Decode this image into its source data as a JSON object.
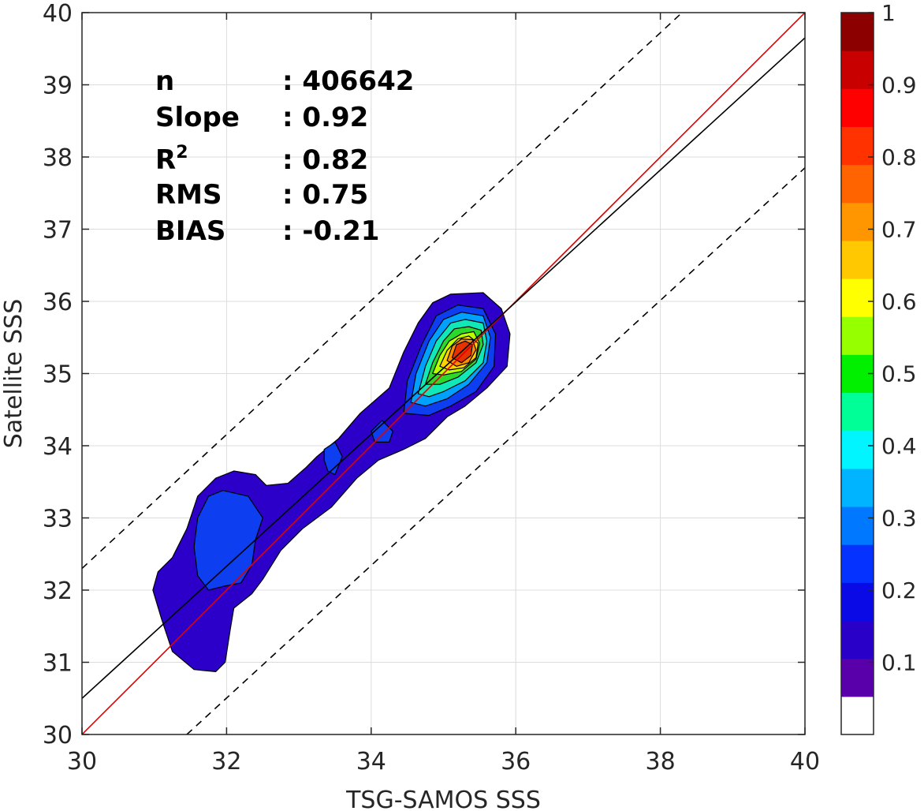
{
  "chart_data": {
    "type": "contour-density",
    "xlabel": "TSG-SAMOS SSS",
    "ylabel": "Satellite SSS",
    "xlim": [
      30,
      40
    ],
    "ylim": [
      30,
      40
    ],
    "x_ticks": [
      "30",
      "32",
      "34",
      "36",
      "38",
      "40"
    ],
    "y_ticks": [
      "30",
      "31",
      "32",
      "33",
      "34",
      "35",
      "36",
      "37",
      "38",
      "39",
      "40"
    ],
    "grid": true,
    "stats": [
      {
        "label": "n",
        "value": ": 406642"
      },
      {
        "label": "Slope",
        "value": ": 0.92"
      },
      {
        "label": "R",
        "sup": "2",
        "value": ": 0.82"
      },
      {
        "label": "RMS",
        "value": ": 0.75"
      },
      {
        "label": "BIAS",
        "value": ": -0.21"
      }
    ],
    "lines": [
      {
        "kind": "one-to-one",
        "color": "#e00000",
        "style": "solid",
        "points": [
          [
            30,
            30
          ],
          [
            40,
            40
          ]
        ]
      },
      {
        "kind": "regression",
        "color": "#000000",
        "style": "solid",
        "points": [
          [
            30,
            30.5
          ],
          [
            40,
            39.65
          ]
        ]
      },
      {
        "kind": "upper-bound",
        "color": "#000000",
        "style": "dashed",
        "points": [
          [
            30,
            32.3
          ],
          [
            38.3,
            40
          ]
        ]
      },
      {
        "kind": "lower-bound",
        "color": "#000000",
        "style": "dashed",
        "points": [
          [
            31.45,
            30
          ],
          [
            40,
            37.85
          ]
        ]
      }
    ],
    "contour_levels": [
      0.1,
      0.2,
      0.3,
      0.4,
      0.5,
      0.6,
      0.7,
      0.8,
      0.9,
      1.0
    ],
    "contour_fill_colors": [
      "#2c00c8",
      "#0d3ef0",
      "#00a0ff",
      "#10e8b8",
      "#2cd82c",
      "#b8ff00",
      "#ffd200",
      "#ff8c00",
      "#e63200",
      "#c80000"
    ],
    "contours": [
      {
        "level": 0.1,
        "points": [
          [
            31.85,
            30.87
          ],
          [
            31.55,
            30.9
          ],
          [
            31.25,
            31.15
          ],
          [
            31.1,
            31.6
          ],
          [
            30.98,
            32.0
          ],
          [
            31.05,
            32.25
          ],
          [
            31.25,
            32.45
          ],
          [
            31.45,
            32.85
          ],
          [
            31.6,
            33.3
          ],
          [
            31.85,
            33.55
          ],
          [
            32.1,
            33.65
          ],
          [
            32.4,
            33.6
          ],
          [
            32.55,
            33.45
          ],
          [
            32.85,
            33.48
          ],
          [
            33.1,
            33.7
          ],
          [
            33.25,
            33.85
          ],
          [
            33.55,
            34.1
          ],
          [
            33.85,
            34.45
          ],
          [
            34.25,
            34.8
          ],
          [
            34.45,
            35.3
          ],
          [
            34.65,
            35.7
          ],
          [
            34.85,
            35.98
          ],
          [
            35.1,
            36.1
          ],
          [
            35.55,
            36.12
          ],
          [
            35.8,
            35.9
          ],
          [
            35.92,
            35.55
          ],
          [
            35.88,
            35.1
          ],
          [
            35.6,
            34.8
          ],
          [
            35.3,
            34.55
          ],
          [
            35.05,
            34.4
          ],
          [
            34.75,
            34.1
          ],
          [
            34.45,
            33.95
          ],
          [
            34.1,
            33.8
          ],
          [
            33.8,
            33.55
          ],
          [
            33.45,
            33.15
          ],
          [
            33.05,
            32.85
          ],
          [
            32.75,
            32.55
          ],
          [
            32.5,
            32.15
          ],
          [
            32.35,
            31.95
          ],
          [
            32.1,
            31.75
          ],
          [
            32.05,
            31.45
          ],
          [
            31.98,
            31.0
          ]
        ]
      },
      {
        "level": 0.2,
        "points": [
          [
            31.75,
            32.0
          ],
          [
            31.6,
            32.2
          ],
          [
            31.55,
            32.6
          ],
          [
            31.6,
            33.0
          ],
          [
            31.75,
            33.3
          ],
          [
            31.95,
            33.38
          ],
          [
            32.3,
            33.3
          ],
          [
            32.5,
            33.0
          ],
          [
            32.4,
            32.7
          ],
          [
            32.35,
            32.35
          ],
          [
            32.2,
            32.1
          ],
          [
            31.95,
            32.05
          ]
        ]
      },
      {
        "level": 0.2,
        "points": [
          [
            33.35,
            33.8
          ],
          [
            33.35,
            33.95
          ],
          [
            33.5,
            34.05
          ],
          [
            33.6,
            33.85
          ],
          [
            33.5,
            33.6
          ],
          [
            33.4,
            33.65
          ]
        ]
      },
      {
        "level": 0.2,
        "points": [
          [
            34.05,
            34.05
          ],
          [
            34.0,
            34.2
          ],
          [
            34.15,
            34.35
          ],
          [
            34.3,
            34.2
          ],
          [
            34.25,
            34.05
          ]
        ]
      },
      {
        "level": 0.2,
        "points": [
          [
            34.45,
            34.45
          ],
          [
            34.5,
            34.9
          ],
          [
            34.7,
            35.4
          ],
          [
            34.9,
            35.8
          ],
          [
            35.2,
            35.95
          ],
          [
            35.55,
            35.9
          ],
          [
            35.72,
            35.55
          ],
          [
            35.7,
            35.1
          ],
          [
            35.45,
            34.75
          ],
          [
            35.1,
            34.55
          ],
          [
            34.8,
            34.42
          ]
        ]
      },
      {
        "level": 0.3,
        "points": [
          [
            34.55,
            34.6
          ],
          [
            34.62,
            35.0
          ],
          [
            34.8,
            35.45
          ],
          [
            35.0,
            35.75
          ],
          [
            35.25,
            35.85
          ],
          [
            35.55,
            35.8
          ],
          [
            35.65,
            35.5
          ],
          [
            35.6,
            35.15
          ],
          [
            35.35,
            34.85
          ],
          [
            35.05,
            34.65
          ],
          [
            34.75,
            34.55
          ]
        ]
      },
      {
        "level": 0.4,
        "points": [
          [
            34.65,
            34.72
          ],
          [
            34.75,
            35.1
          ],
          [
            34.9,
            35.45
          ],
          [
            35.1,
            35.7
          ],
          [
            35.3,
            35.75
          ],
          [
            35.55,
            35.7
          ],
          [
            35.6,
            35.45
          ],
          [
            35.55,
            35.15
          ],
          [
            35.3,
            34.9
          ],
          [
            35.0,
            34.75
          ],
          [
            34.8,
            34.68
          ]
        ]
      },
      {
        "level": 0.5,
        "points": [
          [
            34.75,
            34.85
          ],
          [
            34.85,
            35.15
          ],
          [
            35.0,
            35.45
          ],
          [
            35.15,
            35.62
          ],
          [
            35.35,
            35.65
          ],
          [
            35.52,
            35.6
          ],
          [
            35.55,
            35.4
          ],
          [
            35.45,
            35.15
          ],
          [
            35.2,
            34.95
          ],
          [
            34.95,
            34.85
          ]
        ]
      },
      {
        "level": 0.6,
        "points": [
          [
            34.85,
            35.0
          ],
          [
            34.95,
            35.25
          ],
          [
            35.08,
            35.45
          ],
          [
            35.25,
            35.55
          ],
          [
            35.42,
            35.58
          ],
          [
            35.5,
            35.42
          ],
          [
            35.45,
            35.2
          ],
          [
            35.25,
            35.03
          ],
          [
            35.0,
            34.98
          ]
        ]
      },
      {
        "level": 0.7,
        "points": [
          [
            34.95,
            35.1
          ],
          [
            35.05,
            35.32
          ],
          [
            35.2,
            35.48
          ],
          [
            35.35,
            35.52
          ],
          [
            35.48,
            35.42
          ],
          [
            35.45,
            35.22
          ],
          [
            35.28,
            35.08
          ],
          [
            35.08,
            35.05
          ]
        ]
      },
      {
        "level": 0.8,
        "points": [
          [
            35.05,
            35.18
          ],
          [
            35.12,
            35.38
          ],
          [
            35.25,
            35.48
          ],
          [
            35.4,
            35.47
          ],
          [
            35.45,
            35.33
          ],
          [
            35.35,
            35.15
          ],
          [
            35.18,
            35.1
          ]
        ]
      },
      {
        "level": 0.9,
        "points": [
          [
            35.12,
            35.22
          ],
          [
            35.18,
            35.4
          ],
          [
            35.3,
            35.45
          ],
          [
            35.4,
            35.4
          ],
          [
            35.38,
            35.25
          ],
          [
            35.25,
            35.15
          ]
        ]
      }
    ],
    "colorbar": {
      "ticks": [
        "0.1",
        "0.2",
        "0.3",
        "0.4",
        "0.5",
        "0.6",
        "0.7",
        "0.8",
        "0.9",
        "1"
      ],
      "colors": [
        "#ffffff",
        "#5a00aa",
        "#2800c8",
        "#0a0ae6",
        "#0532ff",
        "#0078ff",
        "#00b4ff",
        "#00f5ff",
        "#00ff96",
        "#00f000",
        "#96ff00",
        "#ffff00",
        "#ffc800",
        "#ff9600",
        "#ff6400",
        "#ff3200",
        "#ff0000",
        "#c80000",
        "#8c0000"
      ],
      "range": [
        0,
        1
      ]
    }
  }
}
